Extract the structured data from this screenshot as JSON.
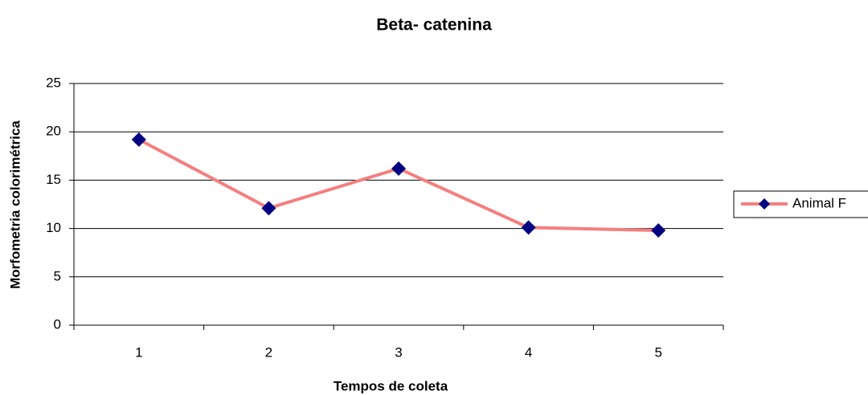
{
  "chart_data": {
    "type": "line",
    "title": "Beta- catenina",
    "x_label": "Tempos de coleta",
    "y_label": "Morfometria colorimétrica",
    "categories": [
      "1",
      "2",
      "3",
      "4",
      "5"
    ],
    "series": [
      {
        "name": "Animal F",
        "color": "#f47f7f",
        "marker_color": "#000080",
        "values": [
          19.2,
          12.1,
          16.2,
          10.1,
          9.8
        ]
      }
    ],
    "ylim": [
      0,
      25
    ],
    "yticks": [
      0,
      5,
      10,
      15,
      20,
      25
    ],
    "grid": true,
    "legend": "right"
  }
}
